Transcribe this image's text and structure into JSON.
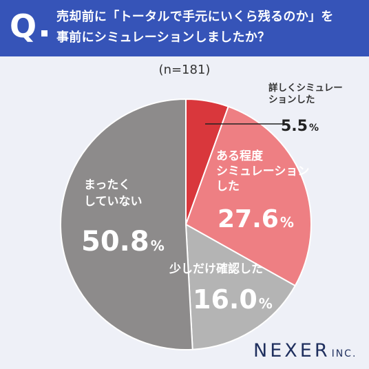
{
  "header": {
    "q_mark": "Q",
    "question_lines": [
      "売却前に「トータルで手元にいくら残るのか」を",
      "事前にシミュレーションしましたか？"
    ]
  },
  "sample_size": "(n=181)",
  "logo": {
    "main": "NEXER",
    "sub": "INC."
  },
  "colors": {
    "header_bg": "#3654b8",
    "background": "#eef0f7"
  },
  "chart_data": {
    "type": "pie",
    "title": "",
    "start_angle_deg": 0,
    "direction": "clockwise",
    "slices": [
      {
        "label_lines": [
          "詳しくシミュレー",
          "ションした"
        ],
        "value": 5.5,
        "display": "5.5",
        "unit": "%",
        "color": "#d9373c"
      },
      {
        "label_lines": [
          "ある程度",
          "シミュレーション",
          "した"
        ],
        "value": 27.6,
        "display": "27.6",
        "unit": "%",
        "color": "#ee7f83"
      },
      {
        "label_lines": [
          "少しだけ確認した"
        ],
        "value": 16.0,
        "display": "16.0",
        "unit": "%",
        "color": "#b4b4b4"
      },
      {
        "label_lines": [
          "まったく",
          "していない"
        ],
        "value": 50.8,
        "display": "50.8",
        "unit": "%",
        "color": "#8d8b8b"
      }
    ]
  }
}
